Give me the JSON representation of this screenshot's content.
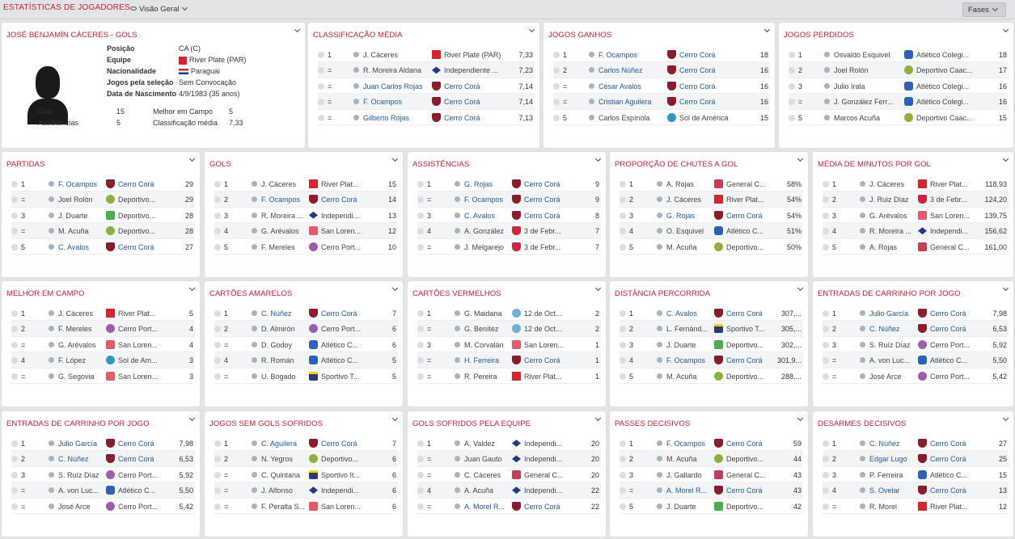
{
  "header": {
    "title": "ESTATÍSTICAS DE JOGADORES",
    "view_label": "Visão Geral",
    "stages_button": "Fases"
  },
  "profile": {
    "title": "JOSÉ BENJAMÍN CÁCERES - GOLS",
    "fields": [
      {
        "label": "Posição",
        "value": "CA (C)"
      },
      {
        "label": "Equipe",
        "value": "River Plate (PAR)",
        "badge": "river"
      },
      {
        "label": "Nacionalidade",
        "value": "Paraguai",
        "flag": "paraguay-flag"
      },
      {
        "label": "Jogos pela seleção",
        "value": "Sem Convocação"
      },
      {
        "label": "Data de Nascimento",
        "value": "4/9/1983 (35 anos)"
      }
    ],
    "stats": [
      {
        "label": "Gols",
        "value": "15"
      },
      {
        "label": "Assistências",
        "value": "5"
      },
      {
        "label": "Melhor em Campo",
        "value": "5"
      },
      {
        "label": "Classificação média",
        "value": "7,33"
      }
    ]
  },
  "panels": [
    {
      "id": "classificacao-media",
      "title": "CLASSIFICAÇÃO MÉDIA",
      "rows": [
        {
          "rank": "1",
          "player": "J. Cáceres",
          "club": "River Plate (PAR)",
          "badge": "river",
          "value": "7,33"
        },
        {
          "rank": "=",
          "player": "R. Moreira Aldana",
          "club": "Independiente ...",
          "badge": "indep",
          "value": "7,23"
        },
        {
          "rank": "=",
          "player": "Juan Carlos Rojas",
          "club": "Cerro Corá",
          "badge": "cerro",
          "value": "7,14",
          "link": true
        },
        {
          "rank": "=",
          "player": "F. Ocampos",
          "club": "Cerro Corá",
          "badge": "cerro",
          "value": "7,14",
          "link": true
        },
        {
          "rank": "=",
          "player": "Gilberto Rojas",
          "club": "Cerro Corá",
          "badge": "cerro",
          "value": "7,13",
          "link": true
        }
      ]
    },
    {
      "id": "jogos-ganhos",
      "title": "JOGOS GANHOS",
      "rows": [
        {
          "rank": "1",
          "player": "F. Ocampos",
          "club": "Cerro Corá",
          "badge": "cerro",
          "value": "18",
          "link": true
        },
        {
          "rank": "2",
          "player": "Carlos Núñez",
          "club": "Cerro Corá",
          "badge": "cerro",
          "value": "16",
          "link": true
        },
        {
          "rank": "=",
          "player": "César Avalos",
          "club": "Cerro Corá",
          "badge": "cerro",
          "value": "16",
          "link": true
        },
        {
          "rank": "=",
          "player": "Cristian Aguilera",
          "club": "Cerro Corá",
          "badge": "cerro",
          "value": "16",
          "link": true
        },
        {
          "rank": "5",
          "player": "Carlos Espínola",
          "club": "Sol de América",
          "badge": "sol",
          "value": "15"
        }
      ]
    },
    {
      "id": "jogos-perdidos",
      "title": "JOGOS PERDIDOS",
      "rows": [
        {
          "rank": "1",
          "player": "Osvaldo Esquivel",
          "club": "Atlético Colegi...",
          "badge": "colegiales",
          "value": "18"
        },
        {
          "rank": "2",
          "player": "Joel Rolón",
          "club": "Deportivo Caac...",
          "badge": "depcaac",
          "value": "17"
        },
        {
          "rank": "3",
          "player": "Julio Irala",
          "club": "Atlético Colegi...",
          "badge": "colegiales",
          "value": "16"
        },
        {
          "rank": "=",
          "player": "J. González Ferr...",
          "club": "Atlético Colegi...",
          "badge": "colegiales",
          "value": "16"
        },
        {
          "rank": "5",
          "player": "Marcos Acuña",
          "club": "Deportivo Caac...",
          "badge": "depcaac",
          "value": "15"
        }
      ]
    },
    {
      "id": "partidas",
      "title": "PARTIDAS",
      "rows": [
        {
          "rank": "1",
          "player": "F. Ocampos",
          "club": "Cerro Corá",
          "badge": "cerro",
          "value": "29",
          "link": true
        },
        {
          "rank": "=",
          "player": "Joel Rolón",
          "club": "Deportivo...",
          "badge": "depcaac",
          "value": "29"
        },
        {
          "rank": "3",
          "player": "J. Duarte",
          "club": "Deportivo...",
          "badge": "guarani",
          "value": "28"
        },
        {
          "rank": "=",
          "player": "M. Acuña",
          "club": "Deportivo...",
          "badge": "depcaac",
          "value": "28"
        },
        {
          "rank": "5",
          "player": "C. Avalos",
          "club": "Cerro Corá",
          "badge": "cerro",
          "value": "27",
          "link": true
        }
      ]
    },
    {
      "id": "gols",
      "title": "GOLS",
      "rows": [
        {
          "rank": "1",
          "player": "J. Cáceres",
          "club": "River Plat...",
          "badge": "river",
          "value": "15"
        },
        {
          "rank": "2",
          "player": "F. Ocampos",
          "club": "Cerro Corá",
          "badge": "cerro",
          "value": "14",
          "link": true
        },
        {
          "rank": "3",
          "player": "R. Moreira ...",
          "club": "Independi...",
          "badge": "indep",
          "value": "13"
        },
        {
          "rank": "4",
          "player": "G. Arévalos",
          "club": "San Loren...",
          "badge": "sanlor",
          "value": "12"
        },
        {
          "rank": "5",
          "player": "F. Mereles",
          "club": "Cerro Port...",
          "badge": "portenio",
          "value": "10"
        }
      ]
    },
    {
      "id": "assistencias",
      "title": "ASSISTÊNCIAS",
      "rows": [
        {
          "rank": "1",
          "player": "G. Rojas",
          "club": "Cerro Corá",
          "badge": "cerro",
          "value": "9",
          "link": true
        },
        {
          "rank": "=",
          "player": "F. Ocampos",
          "club": "Cerro Corá",
          "badge": "cerro",
          "value": "9",
          "link": true
        },
        {
          "rank": "3",
          "player": "C. Avalos",
          "club": "Cerro Corá",
          "badge": "cerro",
          "value": "8",
          "link": true
        },
        {
          "rank": "4",
          "player": "A. González",
          "club": "3 de Febr...",
          "badge": "3feb",
          "value": "7"
        },
        {
          "rank": "=",
          "player": "J. Melgarejo",
          "club": "3 de Febr...",
          "badge": "3feb",
          "value": "7"
        }
      ]
    },
    {
      "id": "proporcao-chutes",
      "title": "PROPORÇÃO DE CHUTES A GOL",
      "rows": [
        {
          "rank": "1",
          "player": "A. Rojas",
          "club": "General C...",
          "badge": "general",
          "value": "58%"
        },
        {
          "rank": "2",
          "player": "J. Cáceres",
          "club": "River Plat...",
          "badge": "river",
          "value": "54%"
        },
        {
          "rank": "3",
          "player": "G. Rojas",
          "club": "Cerro Corá",
          "badge": "cerro",
          "value": "54%",
          "link": true
        },
        {
          "rank": "4",
          "player": "O. Esquivel",
          "club": "Atlético C...",
          "badge": "colegiales",
          "value": "51%"
        },
        {
          "rank": "5",
          "player": "M. Acuña",
          "club": "Deportivo...",
          "badge": "depcaac",
          "value": "50%"
        }
      ]
    },
    {
      "id": "media-minutos-gol",
      "title": "MÉDIA DE MINUTOS POR GOL",
      "rows": [
        {
          "rank": "1",
          "player": "J. Cáceres",
          "club": "River Plat...",
          "badge": "river",
          "value": "118,93"
        },
        {
          "rank": "2",
          "player": "J. Ruiz Díaz",
          "club": "3 de Febr...",
          "badge": "3feb",
          "value": "124,20"
        },
        {
          "rank": "3",
          "player": "G. Arévalos",
          "club": "San Loren...",
          "badge": "sanlor",
          "value": "139,75"
        },
        {
          "rank": "4",
          "player": "R. Moreira ...",
          "club": "Independi...",
          "badge": "indep",
          "value": "156,62"
        },
        {
          "rank": "5",
          "player": "A. Rojas",
          "club": "General C...",
          "badge": "general",
          "value": "161,00"
        }
      ]
    },
    {
      "id": "melhor-em-campo",
      "title": "MELHOR EM CAMPO",
      "rows": [
        {
          "rank": "1",
          "player": "J. Cáceres",
          "club": "River Plat...",
          "badge": "river",
          "value": "5"
        },
        {
          "rank": "2",
          "player": "F. Mereles",
          "club": "Cerro Port...",
          "badge": "portenio",
          "value": "4"
        },
        {
          "rank": "=",
          "player": "G. Arévalos",
          "club": "San Loren...",
          "badge": "sanlor",
          "value": "4"
        },
        {
          "rank": "4",
          "player": "F. López",
          "club": "Sol de Am...",
          "badge": "sol",
          "value": "3"
        },
        {
          "rank": "=",
          "player": "G. Segovia",
          "club": "San Loren...",
          "badge": "sanlor",
          "value": "3"
        }
      ]
    },
    {
      "id": "cartoes-amarelos",
      "title": "CARTÕES AMARELOS",
      "rows": [
        {
          "rank": "1",
          "player": "C. Núñez",
          "club": "Cerro Corá",
          "badge": "cerro",
          "value": "7",
          "link": true
        },
        {
          "rank": "2",
          "player": "D. Almirón",
          "club": "Cerro Port...",
          "badge": "portenio",
          "value": "6"
        },
        {
          "rank": "=",
          "player": "D. Godoy",
          "club": "Atlético C...",
          "badge": "colegiales",
          "value": "6"
        },
        {
          "rank": "4",
          "player": "R. Román",
          "club": "Atlético C...",
          "badge": "colegiales",
          "value": "5"
        },
        {
          "rank": "=",
          "player": "U. Bogado",
          "club": "Sportivo T...",
          "badge": "sportivo",
          "value": "5"
        }
      ]
    },
    {
      "id": "cartoes-vermelhos",
      "title": "CARTÕES VERMELHOS",
      "rows": [
        {
          "rank": "1",
          "player": "G. Maidana",
          "club": "12 de Oct...",
          "badge": "12oct",
          "value": "2"
        },
        {
          "rank": "=",
          "player": "G. Benítez",
          "club": "12 de Oct...",
          "badge": "12oct",
          "value": "2"
        },
        {
          "rank": "3",
          "player": "M. Corvalán",
          "club": "San Loren...",
          "badge": "sanlor",
          "value": "1"
        },
        {
          "rank": "=",
          "player": "H. Ferreira",
          "club": "Cerro Corá",
          "badge": "cerro",
          "value": "1",
          "link": true
        },
        {
          "rank": "=",
          "player": "R. Pereira",
          "club": "River Plat...",
          "badge": "river",
          "value": "1"
        }
      ]
    },
    {
      "id": "distancia-percorrida",
      "title": "DISTÂNCIA PERCORRIDA",
      "rows": [
        {
          "rank": "1",
          "player": "C. Avalos",
          "club": "Cerro Corá",
          "badge": "cerro",
          "value": "307,...",
          "link": true
        },
        {
          "rank": "2",
          "player": "L. Fernánd...",
          "club": "Sportivo T...",
          "badge": "sportivo",
          "value": "305,..."
        },
        {
          "rank": "3",
          "player": "J. Duarte",
          "club": "Deportivo...",
          "badge": "guarani",
          "value": "302,..."
        },
        {
          "rank": "4",
          "player": "F. Ocampos",
          "club": "Cerro Corá",
          "badge": "cerro",
          "value": "301,9...",
          "link": true
        },
        {
          "rank": "5",
          "player": "M. Acuña",
          "club": "Deportivo...",
          "badge": "depcaac",
          "value": "288,..."
        }
      ]
    },
    {
      "id": "entradas-carrinho-1",
      "title": "ENTRADAS DE CARRINHO POR JOGO",
      "rows": [
        {
          "rank": "1",
          "player": "Julio García",
          "club": "Cerro Corá",
          "badge": "cerro",
          "value": "7,98",
          "link": true
        },
        {
          "rank": "2",
          "player": "C. Núñez",
          "club": "Cerro Corá",
          "badge": "cerro",
          "value": "6,53",
          "link": true
        },
        {
          "rank": "3",
          "player": "S. Ruíz Díaz",
          "club": "Cerro Port...",
          "badge": "portenio",
          "value": "5,92"
        },
        {
          "rank": "=",
          "player": "A. von Luc...",
          "club": "Atlético C...",
          "badge": "colegiales",
          "value": "5,50"
        },
        {
          "rank": "=",
          "player": "José Arce",
          "club": "Cerro Port...",
          "badge": "portenio",
          "value": "5,42"
        }
      ]
    },
    {
      "id": "entradas-carrinho-2",
      "title": "ENTRADAS DE CARRINHO POR JOGO",
      "rows": [
        {
          "rank": "1",
          "player": "Julio García",
          "club": "Cerro Corá",
          "badge": "cerro",
          "value": "7,98",
          "link": true
        },
        {
          "rank": "2",
          "player": "C. Núñez",
          "club": "Cerro Corá",
          "badge": "cerro",
          "value": "6,53",
          "link": true
        },
        {
          "rank": "3",
          "player": "S. Ruíz Díaz",
          "club": "Cerro Port...",
          "badge": "portenio",
          "value": "5,92"
        },
        {
          "rank": "=",
          "player": "A. von Luc...",
          "club": "Atlético C...",
          "badge": "colegiales",
          "value": "5,50"
        },
        {
          "rank": "=",
          "player": "José Arce",
          "club": "Cerro Port...",
          "badge": "portenio",
          "value": "5,42"
        }
      ]
    },
    {
      "id": "jogos-sem-gols",
      "title": "JOGOS SEM GOLS SOFRIDOS",
      "rows": [
        {
          "rank": "1",
          "player": "C. Aguilera",
          "club": "Cerro Corá",
          "badge": "cerro",
          "value": "7",
          "link": true
        },
        {
          "rank": "2",
          "player": "N. Yegros",
          "club": "Deportivo...",
          "badge": "depcaac",
          "value": "6"
        },
        {
          "rank": "=",
          "player": "C. Quintana",
          "club": "Sportivo It...",
          "badge": "sportivo",
          "value": "6"
        },
        {
          "rank": "=",
          "player": "J. Alfonso",
          "club": "Independi...",
          "badge": "indep",
          "value": "6"
        },
        {
          "rank": "=",
          "player": "F. Peralta S...",
          "club": "San Loren...",
          "badge": "sanlor",
          "value": "6"
        }
      ]
    },
    {
      "id": "gols-sofridos",
      "title": "GOLS SOFRIDOS PELA EQUIPE",
      "rows": [
        {
          "rank": "1",
          "player": "A. Valdez",
          "club": "Independi...",
          "badge": "indep",
          "value": "20"
        },
        {
          "rank": "=",
          "player": "Juan Gauto",
          "club": "Independi...",
          "badge": "indep",
          "value": "20"
        },
        {
          "rank": "=",
          "player": "C. Cáceres",
          "club": "General C...",
          "badge": "general",
          "value": "20"
        },
        {
          "rank": "4",
          "player": "A. Acuña",
          "club": "Independi...",
          "badge": "indep",
          "value": "22"
        },
        {
          "rank": "=",
          "player": "A. Morel R...",
          "club": "Cerro Corá",
          "badge": "cerro",
          "value": "22",
          "link": true
        }
      ]
    },
    {
      "id": "passes-decisivos",
      "title": "PASSES DECISIVOS",
      "rows": [
        {
          "rank": "1",
          "player": "F. Ocampos",
          "club": "Cerro Corá",
          "badge": "cerro",
          "value": "59",
          "link": true
        },
        {
          "rank": "2",
          "player": "M. Acuña",
          "club": "Deportivo...",
          "badge": "depcaac",
          "value": "44"
        },
        {
          "rank": "3",
          "player": "J. Gallardo",
          "club": "General C...",
          "badge": "general",
          "value": "43"
        },
        {
          "rank": "=",
          "player": "A. Morel R...",
          "club": "Cerro Corá",
          "badge": "cerro",
          "value": "43",
          "link": true
        },
        {
          "rank": "5",
          "player": "J. Duarte",
          "club": "Deportivo...",
          "badge": "guarani",
          "value": "42"
        }
      ]
    },
    {
      "id": "desarmes-decisivos",
      "title": "DESARMES DECISIVOS",
      "rows": [
        {
          "rank": "1",
          "player": "C. Núñez",
          "club": "Cerro Corá",
          "badge": "cerro",
          "value": "27",
          "link": true
        },
        {
          "rank": "2",
          "player": "Edgar Lugo",
          "club": "Cerro Corá",
          "badge": "cerro",
          "value": "25",
          "link": true
        },
        {
          "rank": "3",
          "player": "P. Ferreira",
          "club": "Atlético C...",
          "badge": "colegiales",
          "value": "15"
        },
        {
          "rank": "4",
          "player": "S. Ovelar",
          "club": "Cerro Corá",
          "badge": "cerro",
          "value": "13",
          "link": true
        },
        {
          "rank": "=",
          "player": "R. Morel",
          "club": "River Plat...",
          "badge": "river",
          "value": "12"
        }
      ]
    }
  ]
}
